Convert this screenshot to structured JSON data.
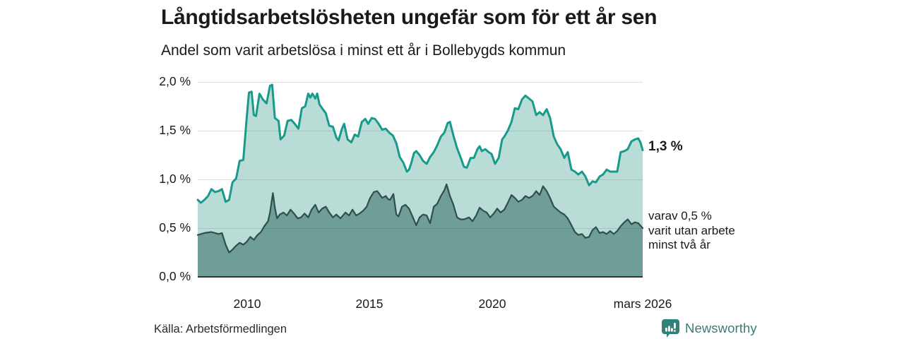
{
  "chart_data": {
    "type": "area",
    "title": "Långtidsarbetslösheten ungefär som för ett år sen",
    "subtitle": "Andel som varit arbetslösa i minst ett år i Bollebygds kommun",
    "x_domain": [
      2008.0,
      2026.17
    ],
    "y_domain": [
      0,
      2
    ],
    "grid": true,
    "legend_position": "none",
    "colors": {
      "background": "#ffffff",
      "grid": "rgba(60,60,60,0.16)",
      "axis": "#333333"
    },
    "y_ticks": [
      {
        "value": 2.0,
        "label": "2,0 %"
      },
      {
        "value": 1.5,
        "label": "1,5 %"
      },
      {
        "value": 1.0,
        "label": "1,0 %"
      },
      {
        "value": 0.5,
        "label": "0,5 %"
      },
      {
        "value": 0.0,
        "label": "0,0 %"
      }
    ],
    "x_ticks": [
      {
        "value": 2010,
        "label": "2010"
      },
      {
        "value": 2015,
        "label": "2015"
      },
      {
        "value": 2020,
        "label": "2020"
      },
      {
        "value": 2026.17,
        "label": "mars 2026"
      }
    ],
    "annotations": {
      "end_value_label": "1,3 %",
      "secondary_label_lines": [
        "varav 0,5 %",
        "varit utan arbete",
        "minst två år"
      ]
    },
    "series": [
      {
        "name": "Andel som varit arbetslösa i minst ett år",
        "end_value": "1,3 %",
        "line_color": "#189a8c",
        "fill_color": "#b9ddd6",
        "points": [
          [
            2008.0,
            0.79
          ],
          [
            2008.13,
            0.76
          ],
          [
            2008.27,
            0.79
          ],
          [
            2008.42,
            0.83
          ],
          [
            2008.56,
            0.9
          ],
          [
            2008.7,
            0.87
          ],
          [
            2008.85,
            0.88
          ],
          [
            2008.99,
            0.9
          ],
          [
            2009.14,
            0.77
          ],
          [
            2009.28,
            0.79
          ],
          [
            2009.42,
            0.97
          ],
          [
            2009.57,
            1.01
          ],
          [
            2009.71,
            1.19
          ],
          [
            2009.86,
            1.2
          ],
          [
            2010.0,
            1.63
          ],
          [
            2010.09,
            1.89
          ],
          [
            2010.2,
            1.9
          ],
          [
            2010.29,
            1.66
          ],
          [
            2010.38,
            1.65
          ],
          [
            2010.52,
            1.88
          ],
          [
            2010.66,
            1.82
          ],
          [
            2010.81,
            1.78
          ],
          [
            2010.95,
            1.96
          ],
          [
            2011.04,
            1.97
          ],
          [
            2011.15,
            1.63
          ],
          [
            2011.3,
            1.6
          ],
          [
            2011.38,
            1.41
          ],
          [
            2011.53,
            1.45
          ],
          [
            2011.67,
            1.6
          ],
          [
            2011.82,
            1.61
          ],
          [
            2011.96,
            1.57
          ],
          [
            2012.11,
            1.52
          ],
          [
            2012.25,
            1.73
          ],
          [
            2012.39,
            1.75
          ],
          [
            2012.51,
            1.88
          ],
          [
            2012.6,
            1.84
          ],
          [
            2012.68,
            1.88
          ],
          [
            2012.8,
            1.83
          ],
          [
            2012.88,
            1.88
          ],
          [
            2012.97,
            1.77
          ],
          [
            2013.08,
            1.73
          ],
          [
            2013.23,
            1.68
          ],
          [
            2013.37,
            1.55
          ],
          [
            2013.52,
            1.54
          ],
          [
            2013.66,
            1.43
          ],
          [
            2013.75,
            1.4
          ],
          [
            2013.89,
            1.52
          ],
          [
            2013.98,
            1.57
          ],
          [
            2014.12,
            1.41
          ],
          [
            2014.27,
            1.38
          ],
          [
            2014.41,
            1.46
          ],
          [
            2014.55,
            1.44
          ],
          [
            2014.7,
            1.59
          ],
          [
            2014.84,
            1.62
          ],
          [
            2014.96,
            1.57
          ],
          [
            2015.1,
            1.63
          ],
          [
            2015.24,
            1.62
          ],
          [
            2015.39,
            1.57
          ],
          [
            2015.53,
            1.51
          ],
          [
            2015.68,
            1.52
          ],
          [
            2015.82,
            1.48
          ],
          [
            2015.97,
            1.45
          ],
          [
            2016.11,
            1.37
          ],
          [
            2016.25,
            1.23
          ],
          [
            2016.4,
            1.17
          ],
          [
            2016.54,
            1.08
          ],
          [
            2016.63,
            1.1
          ],
          [
            2016.71,
            1.16
          ],
          [
            2016.83,
            1.27
          ],
          [
            2016.92,
            1.29
          ],
          [
            2017.06,
            1.25
          ],
          [
            2017.2,
            1.19
          ],
          [
            2017.35,
            1.16
          ],
          [
            2017.49,
            1.23
          ],
          [
            2017.64,
            1.28
          ],
          [
            2017.78,
            1.35
          ],
          [
            2017.93,
            1.44
          ],
          [
            2018.07,
            1.48
          ],
          [
            2018.21,
            1.58
          ],
          [
            2018.3,
            1.59
          ],
          [
            2018.44,
            1.45
          ],
          [
            2018.59,
            1.32
          ],
          [
            2018.73,
            1.23
          ],
          [
            2018.87,
            1.13
          ],
          [
            2018.99,
            1.12
          ],
          [
            2019.14,
            1.22
          ],
          [
            2019.28,
            1.22
          ],
          [
            2019.42,
            1.31
          ],
          [
            2019.51,
            1.34
          ],
          [
            2019.6,
            1.29
          ],
          [
            2019.74,
            1.31
          ],
          [
            2019.88,
            1.28
          ],
          [
            2020.0,
            1.26
          ],
          [
            2020.14,
            1.16
          ],
          [
            2020.29,
            1.22
          ],
          [
            2020.43,
            1.41
          ],
          [
            2020.52,
            1.44
          ],
          [
            2020.66,
            1.5
          ],
          [
            2020.81,
            1.59
          ],
          [
            2020.95,
            1.73
          ],
          [
            2021.09,
            1.72
          ],
          [
            2021.24,
            1.82
          ],
          [
            2021.38,
            1.86
          ],
          [
            2021.53,
            1.83
          ],
          [
            2021.67,
            1.8
          ],
          [
            2021.82,
            1.66
          ],
          [
            2021.96,
            1.69
          ],
          [
            2022.1,
            1.66
          ],
          [
            2022.25,
            1.72
          ],
          [
            2022.39,
            1.63
          ],
          [
            2022.54,
            1.44
          ],
          [
            2022.68,
            1.36
          ],
          [
            2022.82,
            1.31
          ],
          [
            2022.97,
            1.22
          ],
          [
            2023.11,
            1.28
          ],
          [
            2023.26,
            1.1
          ],
          [
            2023.4,
            1.08
          ],
          [
            2023.54,
            1.05
          ],
          [
            2023.69,
            1.08
          ],
          [
            2023.83,
            1.03
          ],
          [
            2023.98,
            0.94
          ],
          [
            2024.12,
            0.98
          ],
          [
            2024.26,
            0.97
          ],
          [
            2024.41,
            1.03
          ],
          [
            2024.55,
            1.05
          ],
          [
            2024.7,
            1.1
          ],
          [
            2024.84,
            1.08
          ],
          [
            2024.99,
            1.08
          ],
          [
            2025.13,
            1.08
          ],
          [
            2025.27,
            1.28
          ],
          [
            2025.42,
            1.29
          ],
          [
            2025.56,
            1.31
          ],
          [
            2025.71,
            1.39
          ],
          [
            2025.85,
            1.41
          ],
          [
            2025.99,
            1.42
          ],
          [
            2026.08,
            1.38
          ],
          [
            2026.17,
            1.3
          ]
        ]
      },
      {
        "name": "varav varit utan arbete minst två år",
        "end_value": "0,5 %",
        "line_color": "#2e4f4a",
        "fill_color": "#6f9d97",
        "points": [
          [
            2008.0,
            0.43
          ],
          [
            2008.27,
            0.45
          ],
          [
            2008.56,
            0.46
          ],
          [
            2008.85,
            0.44
          ],
          [
            2008.99,
            0.45
          ],
          [
            2009.14,
            0.33
          ],
          [
            2009.28,
            0.25
          ],
          [
            2009.42,
            0.28
          ],
          [
            2009.57,
            0.32
          ],
          [
            2009.71,
            0.35
          ],
          [
            2009.86,
            0.33
          ],
          [
            2010.0,
            0.36
          ],
          [
            2010.15,
            0.41
          ],
          [
            2010.29,
            0.38
          ],
          [
            2010.44,
            0.43
          ],
          [
            2010.58,
            0.46
          ],
          [
            2010.72,
            0.52
          ],
          [
            2010.87,
            0.57
          ],
          [
            2010.95,
            0.66
          ],
          [
            2011.07,
            0.86
          ],
          [
            2011.15,
            0.71
          ],
          [
            2011.24,
            0.6
          ],
          [
            2011.35,
            0.64
          ],
          [
            2011.5,
            0.66
          ],
          [
            2011.64,
            0.63
          ],
          [
            2011.79,
            0.69
          ],
          [
            2011.93,
            0.65
          ],
          [
            2012.08,
            0.6
          ],
          [
            2012.22,
            0.61
          ],
          [
            2012.36,
            0.65
          ],
          [
            2012.51,
            0.61
          ],
          [
            2012.65,
            0.69
          ],
          [
            2012.8,
            0.74
          ],
          [
            2012.94,
            0.66
          ],
          [
            2013.08,
            0.7
          ],
          [
            2013.23,
            0.72
          ],
          [
            2013.37,
            0.66
          ],
          [
            2013.52,
            0.61
          ],
          [
            2013.66,
            0.64
          ],
          [
            2013.83,
            0.6
          ],
          [
            2014.03,
            0.66
          ],
          [
            2014.18,
            0.63
          ],
          [
            2014.32,
            0.69
          ],
          [
            2014.47,
            0.63
          ],
          [
            2014.61,
            0.65
          ],
          [
            2014.76,
            0.68
          ],
          [
            2014.9,
            0.72
          ],
          [
            2015.04,
            0.81
          ],
          [
            2015.19,
            0.87
          ],
          [
            2015.33,
            0.88
          ],
          [
            2015.42,
            0.85
          ],
          [
            2015.53,
            0.81
          ],
          [
            2015.68,
            0.83
          ],
          [
            2015.76,
            0.8
          ],
          [
            2015.85,
            0.79
          ],
          [
            2015.99,
            0.85
          ],
          [
            2016.11,
            0.64
          ],
          [
            2016.2,
            0.62
          ],
          [
            2016.34,
            0.72
          ],
          [
            2016.48,
            0.74
          ],
          [
            2016.63,
            0.7
          ],
          [
            2016.77,
            0.62
          ],
          [
            2016.92,
            0.53
          ],
          [
            2017.06,
            0.61
          ],
          [
            2017.2,
            0.64
          ],
          [
            2017.35,
            0.63
          ],
          [
            2017.49,
            0.55
          ],
          [
            2017.64,
            0.72
          ],
          [
            2017.78,
            0.75
          ],
          [
            2017.93,
            0.83
          ],
          [
            2018.07,
            0.89
          ],
          [
            2018.16,
            0.95
          ],
          [
            2018.3,
            0.83
          ],
          [
            2018.44,
            0.74
          ],
          [
            2018.59,
            0.61
          ],
          [
            2018.73,
            0.59
          ],
          [
            2018.87,
            0.59
          ],
          [
            2019.08,
            0.61
          ],
          [
            2019.22,
            0.57
          ],
          [
            2019.37,
            0.63
          ],
          [
            2019.51,
            0.71
          ],
          [
            2019.65,
            0.68
          ],
          [
            2019.8,
            0.66
          ],
          [
            2019.94,
            0.61
          ],
          [
            2020.09,
            0.65
          ],
          [
            2020.23,
            0.7
          ],
          [
            2020.37,
            0.66
          ],
          [
            2020.52,
            0.69
          ],
          [
            2020.66,
            0.76
          ],
          [
            2020.81,
            0.84
          ],
          [
            2020.95,
            0.81
          ],
          [
            2021.09,
            0.77
          ],
          [
            2021.24,
            0.79
          ],
          [
            2021.38,
            0.83
          ],
          [
            2021.53,
            0.81
          ],
          [
            2021.67,
            0.83
          ],
          [
            2021.82,
            0.88
          ],
          [
            2021.96,
            0.84
          ],
          [
            2022.1,
            0.93
          ],
          [
            2022.25,
            0.88
          ],
          [
            2022.39,
            0.81
          ],
          [
            2022.54,
            0.72
          ],
          [
            2022.68,
            0.69
          ],
          [
            2022.82,
            0.66
          ],
          [
            2022.97,
            0.64
          ],
          [
            2023.11,
            0.6
          ],
          [
            2023.26,
            0.53
          ],
          [
            2023.4,
            0.46
          ],
          [
            2023.54,
            0.43
          ],
          [
            2023.69,
            0.44
          ],
          [
            2023.83,
            0.4
          ],
          [
            2023.98,
            0.41
          ],
          [
            2024.12,
            0.48
          ],
          [
            2024.26,
            0.51
          ],
          [
            2024.41,
            0.45
          ],
          [
            2024.55,
            0.46
          ],
          [
            2024.7,
            0.44
          ],
          [
            2024.84,
            0.47
          ],
          [
            2024.99,
            0.44
          ],
          [
            2025.13,
            0.47
          ],
          [
            2025.27,
            0.52
          ],
          [
            2025.42,
            0.56
          ],
          [
            2025.56,
            0.59
          ],
          [
            2025.71,
            0.54
          ],
          [
            2025.85,
            0.56
          ],
          [
            2025.99,
            0.55
          ],
          [
            2026.17,
            0.5
          ]
        ]
      }
    ]
  },
  "source": {
    "text": "Källa: Arbetsförmedlingen"
  },
  "branding": {
    "wordmark": "Newsworthy",
    "badge_color": "#2e8278",
    "text_color": "#3d7b74"
  }
}
